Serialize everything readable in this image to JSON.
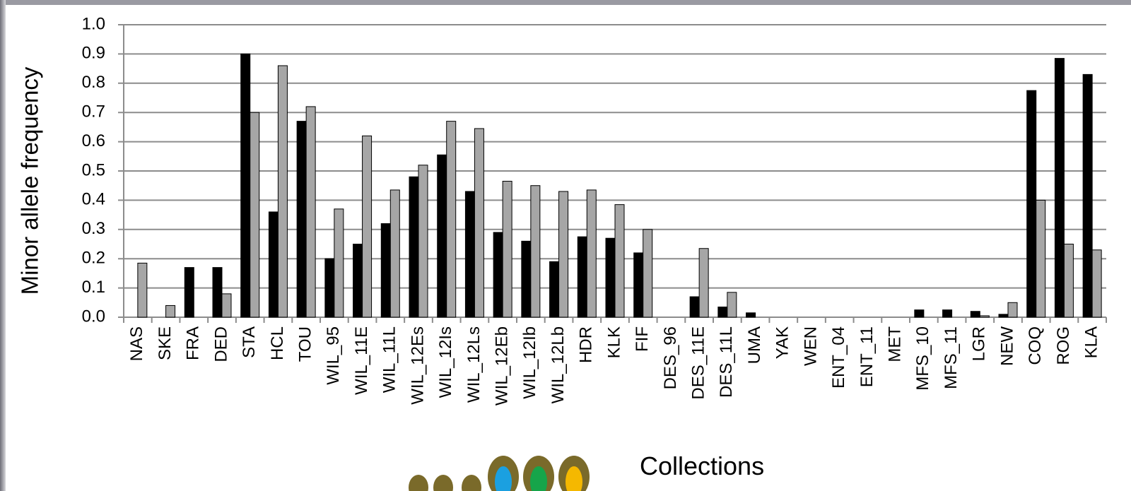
{
  "chart_data": {
    "type": "bar",
    "ylabel": "Minor allele frequency",
    "xlabel": "Collections",
    "categories": [
      "NAS",
      "SKE",
      "FRA",
      "DED",
      "STA",
      "HCL",
      "TOU",
      "WIL_95",
      "WIL_11E",
      "WIL_11L",
      "WIL_12Es",
      "WIL_12Is",
      "WIL_12Ls",
      "WIL_12Eb",
      "WIL_12Ib",
      "WIL_12Lb",
      "HDR",
      "KLK",
      "FIF",
      "DES_96",
      "DES_11E",
      "DES_11L",
      "UMA",
      "YAK",
      "WEN",
      "ENT_04",
      "ENT_11",
      "MET",
      "MFS_10",
      "MFS_11",
      "LGR",
      "NEW",
      "COQ",
      "ROG",
      "KLA"
    ],
    "series": [
      {
        "color": "#000000",
        "values": [
          0,
          0,
          0.17,
          0.17,
          0.9,
          0.36,
          0.67,
          0.2,
          0.25,
          0.32,
          0.48,
          0.555,
          0.43,
          0.29,
          0.26,
          0.19,
          0.275,
          0.27,
          0.22,
          0,
          0.07,
          0.035,
          0.015,
          0,
          0,
          0,
          0,
          0,
          0.025,
          0.025,
          0.02,
          0.01,
          0.775,
          0.885,
          0.83
        ]
      },
      {
        "color": "#a6a6a6",
        "values": [
          0.185,
          0.04,
          0,
          0.08,
          0.7,
          0.86,
          0.72,
          0.37,
          0.62,
          0.435,
          0.52,
          0.67,
          0.645,
          0.465,
          0.45,
          0.43,
          0.435,
          0.385,
          0.3,
          0,
          0.235,
          0.085,
          0,
          0,
          0,
          0,
          0,
          0,
          0,
          0,
          0.005,
          0.05,
          0.4,
          0.25,
          0.23
        ]
      }
    ],
    "ylim": [
      0,
      1
    ],
    "yticks": [
      {
        "value": 0,
        "label": "0.0"
      },
      0.1,
      0.2,
      0.3,
      0.4,
      0.5,
      0.6,
      0.7,
      0.8,
      0.9,
      {
        "value": 1,
        "label": "1.0"
      }
    ],
    "grid": true
  }
}
